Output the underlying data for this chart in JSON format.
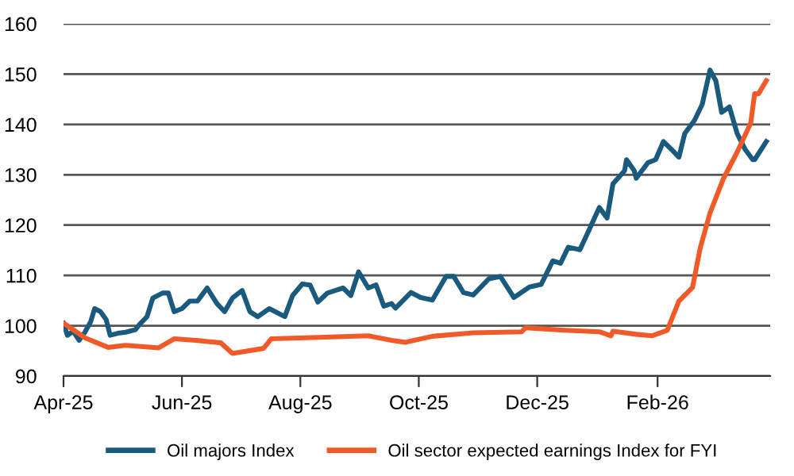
{
  "chart_data": {
    "type": "line",
    "xlim": [
      "2025-04-01",
      "2026-03-31"
    ],
    "ylim": [
      90,
      160
    ],
    "yticks": [
      90,
      100,
      110,
      120,
      130,
      140,
      150,
      160
    ],
    "xticks": [
      {
        "value": "2025-04-01",
        "label": "Apr-25"
      },
      {
        "value": "2025-06-01",
        "label": "Jun-25"
      },
      {
        "value": "2025-08-01",
        "label": "Aug-25"
      },
      {
        "value": "2025-10-01",
        "label": "Oct-25"
      },
      {
        "value": "2025-12-01",
        "label": "Dec-25"
      },
      {
        "value": "2026-02-01",
        "label": "Feb-26"
      }
    ],
    "grid": "y",
    "legend": "bottom",
    "marker": "none",
    "line_style": "solid",
    "series": [
      {
        "name": "Oil majors Index",
        "color": "#1a5a7e",
        "x": [
          "2025-04-01",
          "2025-04-03",
          "2025-04-06",
          "2025-04-09",
          "2025-04-12",
          "2025-04-15",
          "2025-04-17",
          "2025-04-20",
          "2025-04-23",
          "2025-04-25",
          "2025-04-29",
          "2025-05-03",
          "2025-05-08",
          "2025-05-10",
          "2025-05-14",
          "2025-05-17",
          "2025-05-22",
          "2025-05-25",
          "2025-05-28",
          "2025-06-01",
          "2025-06-05",
          "2025-06-09",
          "2025-06-14",
          "2025-06-19",
          "2025-06-23",
          "2025-06-27",
          "2025-07-02",
          "2025-07-06",
          "2025-07-10",
          "2025-07-16",
          "2025-07-24",
          "2025-07-28",
          "2025-08-02",
          "2025-08-06",
          "2025-08-10",
          "2025-08-15",
          "2025-08-19",
          "2025-08-23",
          "2025-08-27",
          "2025-08-31",
          "2025-09-05",
          "2025-09-09",
          "2025-09-13",
          "2025-09-17",
          "2025-09-19",
          "2025-09-27",
          "2025-10-02",
          "2025-10-08",
          "2025-10-15",
          "2025-10-19",
          "2025-10-24",
          "2025-10-29",
          "2025-11-06",
          "2025-11-12",
          "2025-11-19",
          "2025-11-27",
          "2025-12-03",
          "2025-12-09",
          "2025-12-13",
          "2025-12-17",
          "2025-12-23",
          "2025-12-28",
          "2026-01-02",
          "2026-01-06",
          "2026-01-09",
          "2026-01-15",
          "2026-01-16",
          "2026-01-20",
          "2026-01-21",
          "2026-01-27",
          "2026-01-31",
          "2026-02-04",
          "2026-02-08",
          "2026-02-12",
          "2026-02-15",
          "2026-02-20",
          "2026-02-24",
          "2026-02-28",
          "2026-03-03",
          "2026-03-06",
          "2026-03-10",
          "2026-03-14",
          "2026-03-18",
          "2026-03-22",
          "2026-03-23",
          "2026-03-29"
        ],
        "values": [
          100.5,
          98.1,
          98.9,
          97.1,
          98.7,
          100.8,
          103.4,
          102.8,
          101.2,
          98.1,
          98.5,
          98.7,
          99.2,
          100.2,
          101.8,
          105.5,
          106.5,
          106.5,
          102.8,
          103.4,
          104.9,
          104.9,
          107.5,
          104.4,
          102.8,
          105.5,
          107.0,
          102.8,
          101.8,
          103.4,
          101.8,
          106.0,
          108.3,
          108.1,
          104.7,
          106.5,
          107.0,
          107.5,
          106.0,
          110.7,
          107.5,
          108.1,
          103.9,
          104.4,
          103.5,
          106.6,
          105.6,
          105.1,
          109.8,
          109.8,
          106.6,
          106.1,
          109.3,
          109.8,
          105.6,
          107.7,
          108.2,
          112.9,
          112.4,
          115.6,
          115.1,
          119.3,
          123.5,
          121.4,
          128.2,
          130.8,
          133.0,
          130.8,
          129.3,
          132.4,
          133.0,
          136.6,
          135.1,
          133.5,
          138.2,
          140.8,
          144.0,
          150.8,
          148.7,
          142.4,
          143.5,
          138.2,
          135.1,
          133.0,
          133.0,
          136.6
        ]
      },
      {
        "name": "Oil sector expected earnings Index for FYI",
        "color": "#f05a28",
        "x": [
          "2025-04-01",
          "2025-04-06",
          "2025-04-12",
          "2025-04-17",
          "2025-04-24",
          "2025-05-03",
          "2025-05-20",
          "2025-05-28",
          "2025-06-08",
          "2025-06-21",
          "2025-06-27",
          "2025-07-13",
          "2025-07-17",
          "2025-08-04",
          "2025-08-20",
          "2025-09-05",
          "2025-09-17",
          "2025-09-24",
          "2025-10-08",
          "2025-10-29",
          "2025-11-23",
          "2025-11-25",
          "2025-12-15",
          "2026-01-02",
          "2026-01-08",
          "2026-01-09",
          "2026-01-21",
          "2026-01-29",
          "2026-02-06",
          "2026-02-12",
          "2026-02-19",
          "2026-02-23",
          "2026-02-28",
          "2026-03-07",
          "2026-03-14",
          "2026-03-21",
          "2026-03-23",
          "2026-03-25",
          "2026-03-29"
        ],
        "values": [
          100.5,
          99.2,
          97.6,
          96.8,
          95.7,
          96.1,
          95.6,
          97.4,
          97.1,
          96.6,
          94.5,
          95.5,
          97.4,
          97.6,
          97.8,
          98.0,
          97.1,
          96.7,
          97.9,
          98.6,
          98.8,
          99.6,
          99.1,
          98.8,
          98.0,
          98.9,
          98.3,
          98.0,
          99.1,
          104.9,
          107.6,
          115.5,
          122.4,
          129.3,
          134.5,
          140.3,
          146.1,
          146.1,
          148.7
        ]
      }
    ]
  }
}
